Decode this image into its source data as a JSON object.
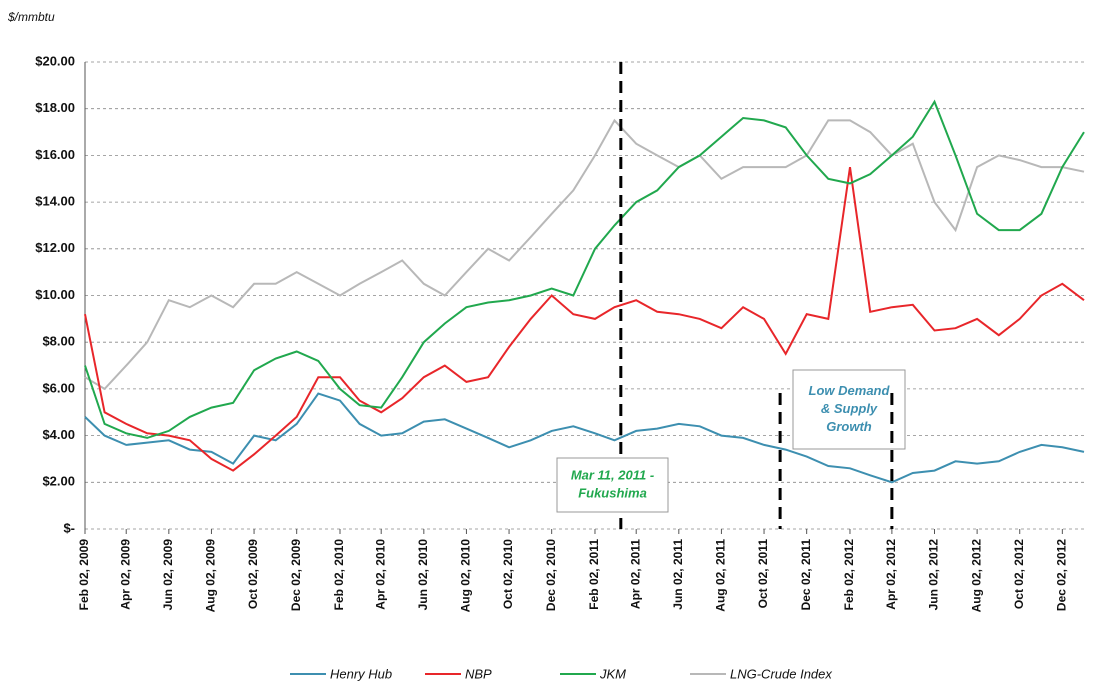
{
  "chart_data": {
    "type": "line",
    "y_label": "$/mmbtu",
    "x": [
      "2009-02-02",
      "2009-03-02",
      "2009-04-02",
      "2009-05-02",
      "2009-06-02",
      "2009-07-02",
      "2009-08-02",
      "2009-09-02",
      "2009-10-02",
      "2009-11-02",
      "2009-12-02",
      "2010-01-02",
      "2010-02-02",
      "2010-03-02",
      "2010-04-02",
      "2010-05-02",
      "2010-06-02",
      "2010-07-02",
      "2010-08-02",
      "2010-09-02",
      "2010-10-02",
      "2010-11-02",
      "2010-12-02",
      "2011-01-02",
      "2011-02-02",
      "2011-03-02",
      "2011-04-02",
      "2011-05-02",
      "2011-06-02",
      "2011-07-02",
      "2011-08-02",
      "2011-09-02",
      "2011-10-02",
      "2011-11-02",
      "2011-12-02",
      "2012-01-02",
      "2012-02-02",
      "2012-03-02",
      "2012-04-02",
      "2012-05-02",
      "2012-06-02",
      "2012-07-02",
      "2012-08-02",
      "2012-09-02",
      "2012-10-02",
      "2012-11-02",
      "2012-12-02",
      "2013-01-02"
    ],
    "series": [
      {
        "name": "Henry Hub",
        "color": "#3d8fb0",
        "values": [
          4.8,
          4.0,
          3.6,
          3.7,
          3.8,
          3.4,
          3.3,
          2.8,
          4.0,
          3.8,
          4.5,
          5.8,
          5.5,
          4.5,
          4.0,
          4.1,
          4.6,
          4.7,
          4.3,
          3.9,
          3.5,
          3.8,
          4.2,
          4.4,
          4.1,
          3.8,
          4.2,
          4.3,
          4.5,
          4.4,
          4.0,
          3.9,
          3.6,
          3.4,
          3.1,
          2.7,
          2.6,
          2.3,
          2.0,
          2.4,
          2.5,
          2.9,
          2.8,
          2.9,
          3.3,
          3.6,
          3.5,
          3.3
        ]
      },
      {
        "name": "NBP",
        "color": "#e8262a",
        "values": [
          9.2,
          5.0,
          4.5,
          4.1,
          4.0,
          3.8,
          3.0,
          2.5,
          3.2,
          4.0,
          4.8,
          6.5,
          6.5,
          5.5,
          5.0,
          5.6,
          6.5,
          7.0,
          6.3,
          6.5,
          7.8,
          9.0,
          10.0,
          9.2,
          9.0,
          9.5,
          9.8,
          9.3,
          9.2,
          9.0,
          8.6,
          9.5,
          9.0,
          7.5,
          9.2,
          9.0,
          15.5,
          9.3,
          9.5,
          9.6,
          8.5,
          8.6,
          9.0,
          8.3,
          9.0,
          10.0,
          10.5,
          9.8
        ]
      },
      {
        "name": "JKM",
        "color": "#21a84e",
        "values": [
          7.0,
          4.5,
          4.1,
          3.9,
          4.2,
          4.8,
          5.2,
          5.4,
          6.8,
          7.3,
          7.6,
          7.2,
          6.0,
          5.3,
          5.2,
          6.5,
          8.0,
          8.8,
          9.5,
          9.7,
          9.8,
          10.0,
          10.3,
          10.0,
          12.0,
          13.0,
          14.0,
          14.5,
          15.5,
          16.0,
          16.8,
          17.6,
          17.5,
          17.2,
          16.0,
          15.0,
          14.8,
          15.2,
          16.0,
          16.8,
          18.3,
          16.0,
          13.5,
          12.8,
          12.8,
          13.5,
          15.5,
          17.0
        ]
      },
      {
        "name": "LNG-Crude Index",
        "color": "#b8b8b8",
        "values": [
          6.5,
          6.0,
          7.0,
          8.0,
          9.8,
          9.5,
          10.0,
          9.5,
          10.5,
          10.5,
          11.0,
          10.5,
          10.0,
          10.5,
          11.0,
          11.5,
          10.5,
          10.0,
          11.0,
          12.0,
          11.5,
          12.5,
          13.5,
          14.5,
          16.0,
          17.5,
          16.5,
          16.0,
          15.5,
          16.0,
          15.0,
          15.5,
          15.5,
          15.5,
          16.0,
          17.5,
          17.5,
          17.0,
          16.0,
          16.5,
          14.0,
          12.8,
          15.5,
          16.0,
          15.8,
          15.5,
          15.5,
          15.3
        ]
      }
    ],
    "xlim": [
      "2009-02-02",
      "2013-01-02"
    ],
    "xticks": [
      {
        "value": "2009-02-02",
        "label": "Feb 02, 2009"
      },
      {
        "value": "2009-04-02",
        "label": "Apr 02, 2009"
      },
      {
        "value": "2009-06-02",
        "label": "Jun 02, 2009"
      },
      {
        "value": "2009-08-02",
        "label": "Aug 02, 2009"
      },
      {
        "value": "2009-10-02",
        "label": "Oct 02, 2009"
      },
      {
        "value": "2009-12-02",
        "label": "Dec 02, 2009"
      },
      {
        "value": "2010-02-02",
        "label": "Feb 02, 2010"
      },
      {
        "value": "2010-04-02",
        "label": "Apr 02, 2010"
      },
      {
        "value": "2010-06-02",
        "label": "Jun 02, 2010"
      },
      {
        "value": "2010-08-02",
        "label": "Aug 02, 2010"
      },
      {
        "value": "2010-10-02",
        "label": "Oct 02, 2010"
      },
      {
        "value": "2010-12-02",
        "label": "Dec 02, 2010"
      },
      {
        "value": "2011-02-02",
        "label": "Feb 02, 2011"
      },
      {
        "value": "2011-04-02",
        "label": "Apr 02, 2011"
      },
      {
        "value": "2011-06-02",
        "label": "Jun 02, 2011"
      },
      {
        "value": "2011-08-02",
        "label": "Aug 02, 2011"
      },
      {
        "value": "2011-10-02",
        "label": "Oct 02, 2011"
      },
      {
        "value": "2011-12-02",
        "label": "Dec 02, 2011"
      },
      {
        "value": "2012-02-02",
        "label": "Feb 02, 2012"
      },
      {
        "value": "2012-04-02",
        "label": "Apr 02, 2012"
      },
      {
        "value": "2012-06-02",
        "label": "Jun 02, 2012"
      },
      {
        "value": "2012-08-02",
        "label": "Aug 02, 2012"
      },
      {
        "value": "2012-10-02",
        "label": "Oct 02, 2012"
      },
      {
        "value": "2012-12-02",
        "label": "Dec 02, 2012"
      }
    ],
    "ylim": [
      0,
      20
    ],
    "yticks": [
      {
        "value": 0,
        "label": "$-"
      },
      {
        "value": 2,
        "label": "$2.00"
      },
      {
        "value": 4,
        "label": "$4.00"
      },
      {
        "value": 6,
        "label": "$6.00"
      },
      {
        "value": 8,
        "label": "$8.00"
      },
      {
        "value": 10,
        "label": "$10.00"
      },
      {
        "value": 12,
        "label": "$12.00"
      },
      {
        "value": 14,
        "label": "$14.00"
      },
      {
        "value": 16,
        "label": "$16.00"
      },
      {
        "value": 18,
        "label": "$18.00"
      },
      {
        "value": 20,
        "label": "$20.00"
      }
    ],
    "grid": true,
    "legend": "bottom",
    "events": [
      {
        "x": "2011-03-11",
        "color": "#21a84e",
        "lines": [
          "Mar 11, 2011 -",
          "Fukushima"
        ]
      },
      {
        "x": "2011-10-25",
        "color": "#3d8fb0",
        "lines": [
          "Low Demand",
          "& Supply",
          "Growth"
        ]
      },
      {
        "x": "2012-04-02"
      }
    ]
  }
}
